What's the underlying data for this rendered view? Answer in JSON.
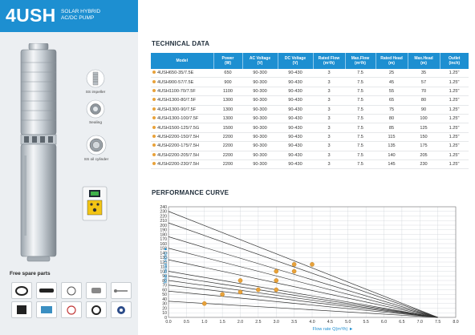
{
  "brand": {
    "code": "4USH",
    "subtitle_line1": "SOLAR HYBRID",
    "subtitle_line2": "AC/DC PUMP"
  },
  "features": [
    {
      "label": "SS impeller",
      "icon": "impeller-icon"
    },
    {
      "label": "Sealing",
      "icon": "sealing-icon"
    },
    {
      "label": "SS oil cylinder",
      "icon": "oil-cylinder-icon"
    }
  ],
  "spare_parts": {
    "title": "Free spare parts",
    "items": [
      "cable-icon",
      "pipe-icon",
      "cable-tie-icon",
      "clamp-icon",
      "screw-icon",
      "float-switch-icon",
      "rope-icon",
      "valve-icon",
      "seal-ring-icon",
      "tape-icon"
    ]
  },
  "technical": {
    "title": "TECHNICAL DATA",
    "headers": [
      [
        "Model"
      ],
      [
        "Power",
        "(W)"
      ],
      [
        "AC Voltage",
        "(V)"
      ],
      [
        "DC Voltage",
        "(V)"
      ],
      [
        "Rated Flow",
        "(m³/h)"
      ],
      [
        "Max.Flow",
        "(m³/h)"
      ],
      [
        "Rated Head",
        "(m)"
      ],
      [
        "Max.Head",
        "(m)"
      ],
      [
        "Outlet",
        "(inch)"
      ]
    ],
    "rows": [
      [
        "4USH650-35/7.5E",
        "650",
        "90-300",
        "90-430",
        "3",
        "7.5",
        "25",
        "35",
        "1.25\""
      ],
      [
        "4USH900-57/7.5E",
        "900",
        "90-300",
        "90-430",
        "3",
        "7.5",
        "45",
        "57",
        "1.25\""
      ],
      [
        "4USH1100-70/7.5F",
        "1100",
        "90-300",
        "90-430",
        "3",
        "7.5",
        "55",
        "70",
        "1.25\""
      ],
      [
        "4USH1300-80/7.5F",
        "1300",
        "90-300",
        "90-430",
        "3",
        "7.5",
        "65",
        "80",
        "1.25\""
      ],
      [
        "4USH1300-90/7.5F",
        "1300",
        "90-300",
        "90-430",
        "3",
        "7.5",
        "75",
        "90",
        "1.25\""
      ],
      [
        "4USH1300-100/7.5F",
        "1300",
        "90-300",
        "90-430",
        "3",
        "7.5",
        "80",
        "100",
        "1.25\""
      ],
      [
        "4USH1500-125/7.5G",
        "1500",
        "90-300",
        "90-430",
        "3",
        "7.5",
        "85",
        "125",
        "1.25\""
      ],
      [
        "4USH2200-150/7.5H",
        "2200",
        "90-300",
        "90-430",
        "3",
        "7.5",
        "115",
        "150",
        "1.25\""
      ],
      [
        "4USH2200-175/7.5H",
        "2200",
        "90-300",
        "90-430",
        "3",
        "7.5",
        "135",
        "175",
        "1.25\""
      ],
      [
        "4USH2200-205/7.5H",
        "2200",
        "90-300",
        "90-430",
        "3",
        "7.5",
        "140",
        "205",
        "1.25\""
      ],
      [
        "4USH2200-230/7.5H",
        "2200",
        "90-300",
        "90-430",
        "3",
        "7.5",
        "145",
        "230",
        "1.25\""
      ]
    ]
  },
  "performance": {
    "title": "PERFORMANCE CURVE",
    "ylabel": "Total head H(m) ►",
    "xlabel": "Flow rate Q(m³/h) ►",
    "x_ticks": [
      "0.0",
      "0.5",
      "1.0",
      "1.5",
      "2.0",
      "2.5",
      "3.0",
      "3.5",
      "4.0",
      "4.5",
      "5.0",
      "5.5",
      "6.0",
      "6.5",
      "7.0",
      "7.5",
      "8.0"
    ],
    "y_ticks": [
      "0",
      "10",
      "20",
      "30",
      "40",
      "50",
      "60",
      "70",
      "80",
      "90",
      "100",
      "110",
      "120",
      "130",
      "140",
      "150",
      "160",
      "170",
      "180",
      "190",
      "200",
      "210",
      "220",
      "230",
      "240"
    ]
  },
  "chart_data": {
    "type": "line",
    "title": "PERFORMANCE CURVE",
    "xlabel": "Flow rate Q(m³/h)",
    "ylabel": "Total head H(m)",
    "xlim": [
      0,
      8
    ],
    "ylim": [
      0,
      240
    ],
    "grid": true,
    "series": [
      {
        "name": "4USH650-35/7.5E",
        "x": [
          0,
          7.5
        ],
        "y": [
          35,
          0
        ]
      },
      {
        "name": "4USH900-57/7.5E",
        "x": [
          0,
          7.5
        ],
        "y": [
          57,
          0
        ]
      },
      {
        "name": "4USH1100-70/7.5F",
        "x": [
          0,
          7.5
        ],
        "y": [
          70,
          0
        ]
      },
      {
        "name": "4USH1300-80/7.5F",
        "x": [
          0,
          7.5
        ],
        "y": [
          80,
          0
        ]
      },
      {
        "name": "4USH1300-90/7.5F",
        "x": [
          0,
          7.5
        ],
        "y": [
          90,
          0
        ]
      },
      {
        "name": "4USH1300-100/7.5F",
        "x": [
          0,
          7.5
        ],
        "y": [
          100,
          0
        ]
      },
      {
        "name": "4USH1500-125/7.5G",
        "x": [
          0,
          7.5
        ],
        "y": [
          125,
          0
        ]
      },
      {
        "name": "4USH2200-150/7.5H",
        "x": [
          0,
          7.5
        ],
        "y": [
          150,
          0
        ]
      },
      {
        "name": "4USH2200-175/7.5H",
        "x": [
          0,
          7.5
        ],
        "y": [
          175,
          0
        ]
      },
      {
        "name": "4USH2200-205/7.5H",
        "x": [
          0,
          7.5
        ],
        "y": [
          205,
          0
        ]
      },
      {
        "name": "4USH2200-230/7.5H",
        "x": [
          0,
          7.5
        ],
        "y": [
          230,
          0
        ]
      }
    ],
    "operating_points": [
      {
        "x": 1.0,
        "y": 30
      },
      {
        "x": 1.5,
        "y": 50
      },
      {
        "x": 2.0,
        "y": 55
      },
      {
        "x": 2.0,
        "y": 80
      },
      {
        "x": 2.5,
        "y": 60
      },
      {
        "x": 3.0,
        "y": 60
      },
      {
        "x": 3.0,
        "y": 80
      },
      {
        "x": 3.0,
        "y": 100
      },
      {
        "x": 3.5,
        "y": 100
      },
      {
        "x": 3.5,
        "y": 115
      },
      {
        "x": 4.0,
        "y": 115
      }
    ],
    "colors": {
      "lines": "#333333",
      "points": "#e8a23a",
      "axis_label": "#1d8fd1"
    }
  }
}
